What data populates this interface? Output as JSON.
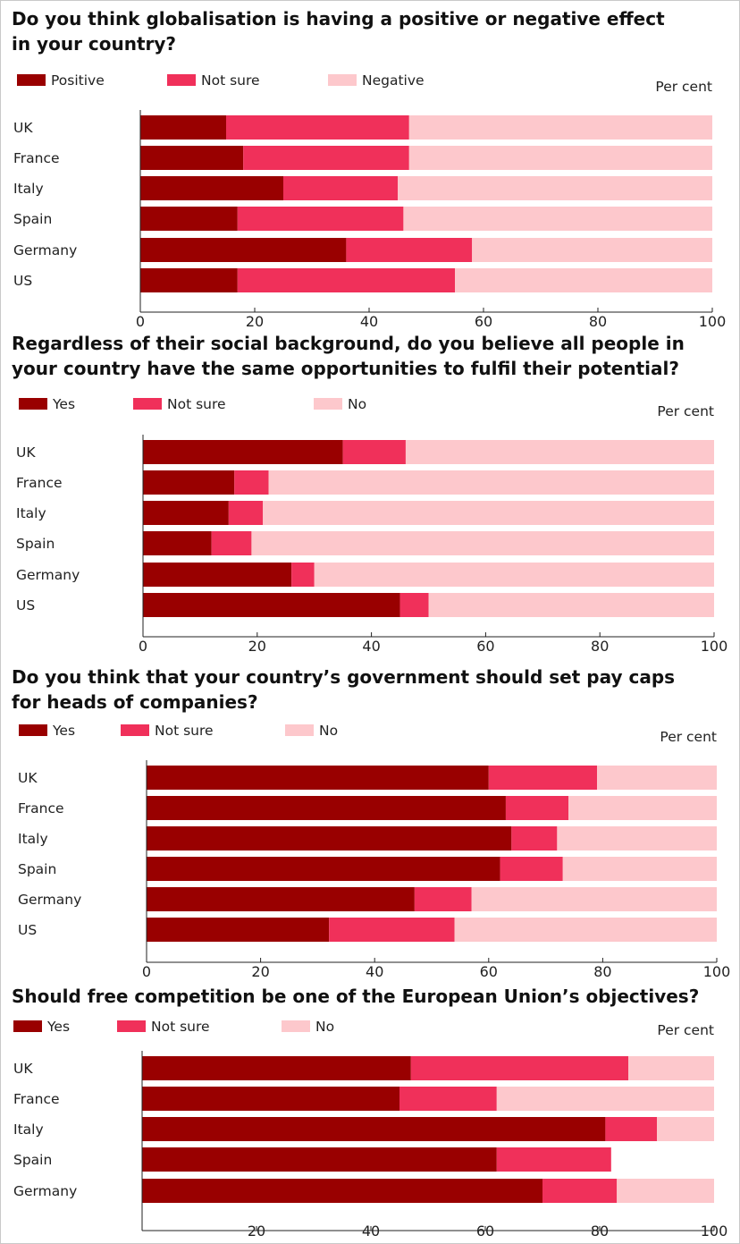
{
  "colors": {
    "Positive": "#990000",
    "Yes": "#990000",
    "Not sure": "#f0305a",
    "Negative": "#fdc8cc",
    "No": "#fdc8cc"
  },
  "chart_data": [
    {
      "type": "bar",
      "orientation": "horizontal",
      "stacked": true,
      "title": "Do you think globalisation is having a positive or negative effect in your country?",
      "title_lines": [
        "Do you think globalisation is having a positive or negative effect",
        "in your country?"
      ],
      "unit_label": "Per cent",
      "categories": [
        "UK",
        "France",
        "Italy",
        "Spain",
        "Germany",
        "US"
      ],
      "series": [
        {
          "name": "Positive",
          "values": [
            15,
            18,
            25,
            17,
            36,
            17
          ]
        },
        {
          "name": "Not sure",
          "values": [
            32,
            29,
            20,
            29,
            22,
            38
          ]
        },
        {
          "name": "Negative",
          "values": [
            53,
            53,
            55,
            54,
            42,
            45
          ]
        }
      ],
      "xlim": [
        0,
        100
      ],
      "xticks": [
        0,
        20,
        40,
        60,
        80,
        100
      ],
      "legend_position": "top",
      "grid": false
    },
    {
      "type": "bar",
      "orientation": "horizontal",
      "stacked": true,
      "title": "Regardless of their social background, do you believe all people in your country have the same opportunities to fulfil their potential?",
      "title_lines": [
        "Regardless of their social background, do you believe all people in",
        "your country have the same opportunities to fulfil their potential?"
      ],
      "unit_label": "Per cent",
      "categories": [
        "UK",
        "France",
        "Italy",
        "Spain",
        "Germany",
        "US"
      ],
      "series": [
        {
          "name": "Yes",
          "values": [
            35,
            16,
            15,
            12,
            26,
            45
          ]
        },
        {
          "name": "Not sure",
          "values": [
            11,
            6,
            6,
            7,
            4,
            5
          ]
        },
        {
          "name": "No",
          "values": [
            54,
            78,
            79,
            81,
            70,
            50
          ]
        }
      ],
      "xlim": [
        0,
        100
      ],
      "xticks": [
        0,
        20,
        40,
        60,
        80,
        100
      ],
      "legend_position": "top",
      "grid": false
    },
    {
      "type": "bar",
      "orientation": "horizontal",
      "stacked": true,
      "title": "Do you think that your country's government should set pay caps for heads of companies?",
      "title_lines": [
        "Do you think that your country’s government should set pay caps",
        "for heads of companies?"
      ],
      "unit_label": "Per cent",
      "categories": [
        "UK",
        "France",
        "Italy",
        "Spain",
        "Germany",
        "US"
      ],
      "series": [
        {
          "name": "Yes",
          "values": [
            60,
            63,
            64,
            62,
            47,
            32
          ]
        },
        {
          "name": "Not sure",
          "values": [
            19,
            11,
            8,
            11,
            10,
            22
          ]
        },
        {
          "name": "No",
          "values": [
            21,
            26,
            28,
            27,
            43,
            46
          ]
        }
      ],
      "xlim": [
        0,
        100
      ],
      "xticks": [
        0,
        20,
        40,
        60,
        80,
        100
      ],
      "legend_position": "top",
      "grid": false
    },
    {
      "type": "bar",
      "orientation": "horizontal",
      "stacked": true,
      "title": "Should free competition be one of the European Union's objectives?",
      "title_lines": [
        "Should free competition be one of the European Union’s objectives?"
      ],
      "unit_label": "Per cent",
      "categories": [
        "UK",
        "France",
        "Italy",
        "Spain",
        "Germany"
      ],
      "series": [
        {
          "name": "Yes",
          "values": [
            47,
            45,
            81,
            62,
            70
          ]
        },
        {
          "name": "Not sure",
          "values": [
            38,
            17,
            9,
            20,
            13
          ]
        },
        {
          "name": "No",
          "values": [
            15,
            38,
            10,
            0,
            17
          ]
        }
      ],
      "xlim": [
        0,
        100
      ],
      "xticks": [
        20,
        40,
        60,
        80,
        100
      ],
      "legend_position": "top",
      "grid": false
    }
  ]
}
